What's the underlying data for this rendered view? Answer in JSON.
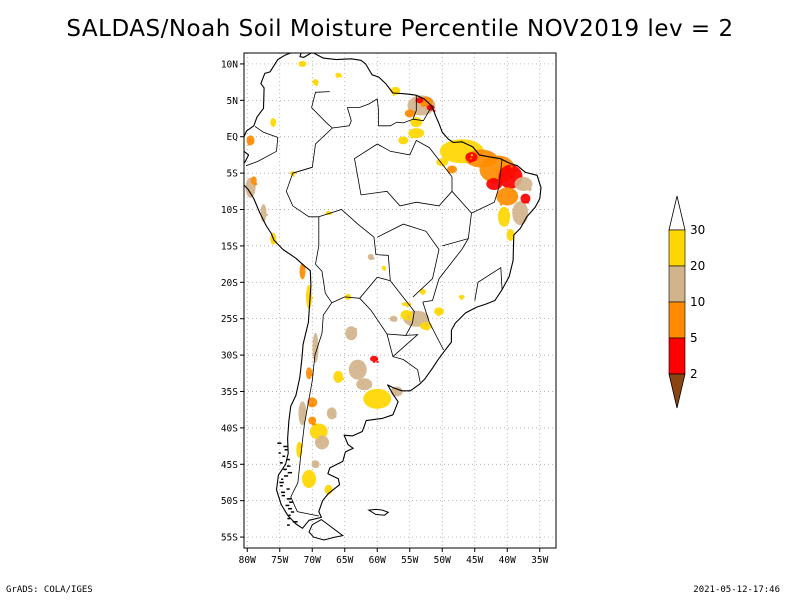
{
  "title": "SALDAS/Noah Soil Moisture Percentile NOV2019 lev = 2",
  "map": {
    "lat_labels": [
      "10N",
      "5N",
      "EQ",
      "5S",
      "10S",
      "15S",
      "20S",
      "25S",
      "30S",
      "35S",
      "40S",
      "45S",
      "50S",
      "55S"
    ],
    "lat_values": [
      10,
      5,
      0,
      -5,
      -10,
      -15,
      -20,
      -25,
      -30,
      -35,
      -40,
      -45,
      -50,
      -55
    ],
    "lon_labels": [
      "80W",
      "75W",
      "70W",
      "65W",
      "60W",
      "55W",
      "50W",
      "45W",
      "40W",
      "35W"
    ],
    "lon_values": [
      -80,
      -75,
      -70,
      -65,
      -60,
      -55,
      -50,
      -45,
      -40,
      -35
    ],
    "extent": {
      "lon_min": -80.5,
      "lon_max": -32.5,
      "lat_min": -56.5,
      "lat_max": 11.5
    },
    "grid": "dotted",
    "colors": {
      "brown": "#8B4513",
      "red": "#FF0000",
      "orange": "#FF8C00",
      "tan": "#D2B48C",
      "gold": "#FFD700",
      "land_outline": "#000000"
    }
  },
  "colorbar": {
    "labels": [
      "2",
      "5",
      "10",
      "20",
      "30"
    ],
    "values": [
      2,
      5,
      10,
      20,
      30
    ],
    "bins": [
      {
        "color": "#8B4513",
        "range": "<2"
      },
      {
        "color": "#FF0000",
        "range": "2-5"
      },
      {
        "color": "#FF8C00",
        "range": "5-10"
      },
      {
        "color": "#D2B48C",
        "range": "10-20"
      },
      {
        "color": "#FFD700",
        "range": "20-30"
      },
      {
        "color": "#FFFFFF",
        "range": ">30"
      }
    ]
  },
  "footer": {
    "left": "GrADS: COLA/IGES",
    "right": "2021-05-12-17:46"
  }
}
